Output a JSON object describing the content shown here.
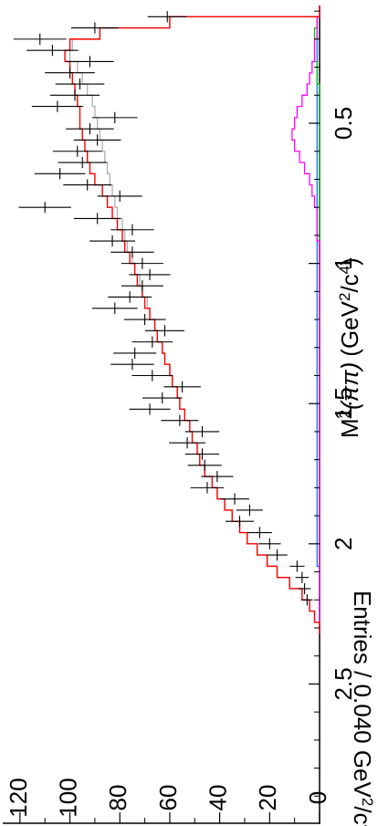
{
  "chart_data": {
    "type": "line",
    "orientation": "rotated-90-clockwise",
    "xlabel_base": "M",
    "xlabel_sup": "2",
    "xlabel_arg": "(ππ)",
    "xlabel_unit_a": "(GeV",
    "xlabel_unit_sup1": "2",
    "xlabel_unit_b": "/c",
    "xlabel_unit_sup2": "4",
    "xlabel_unit_c": ")",
    "ylabel_a": "Entries / 0.040 GeV",
    "ylabel_sup1": "2",
    "ylabel_b": "/c",
    "ylabel_sup2": "4",
    "xlim": [
      0.08,
      3.0
    ],
    "ylim": [
      0,
      128
    ],
    "x_ticks": [
      {
        "v": 0.5,
        "label": "0.5"
      },
      {
        "v": 1.0,
        "label": "1"
      },
      {
        "v": 1.5,
        "label": "1.5"
      },
      {
        "v": 2.0,
        "label": "2"
      },
      {
        "v": 2.5,
        "label": "2.5"
      }
    ],
    "y_ticks": [
      {
        "v": 0,
        "label": "0"
      },
      {
        "v": 20,
        "label": "20"
      },
      {
        "v": 40,
        "label": "40"
      },
      {
        "v": 60,
        "label": "60"
      },
      {
        "v": 80,
        "label": "80"
      },
      {
        "v": 100,
        "label": "100"
      },
      {
        "v": 120,
        "label": "120"
      }
    ],
    "bin_width": 0.04,
    "data_points": [
      {
        "x": 0.12,
        "y": 61
      },
      {
        "x": 0.16,
        "y": 90
      },
      {
        "x": 0.2,
        "y": 112
      },
      {
        "x": 0.24,
        "y": 107
      },
      {
        "x": 0.28,
        "y": 92
      },
      {
        "x": 0.32,
        "y": 100
      },
      {
        "x": 0.36,
        "y": 96
      },
      {
        "x": 0.4,
        "y": 98
      },
      {
        "x": 0.44,
        "y": 105
      },
      {
        "x": 0.48,
        "y": 82
      },
      {
        "x": 0.52,
        "y": 92
      },
      {
        "x": 0.56,
        "y": 89
      },
      {
        "x": 0.6,
        "y": 97
      },
      {
        "x": 0.64,
        "y": 95
      },
      {
        "x": 0.68,
        "y": 104
      },
      {
        "x": 0.72,
        "y": 93
      },
      {
        "x": 0.76,
        "y": 80
      },
      {
        "x": 0.8,
        "y": 110
      },
      {
        "x": 0.84,
        "y": 89
      },
      {
        "x": 0.88,
        "y": 75
      },
      {
        "x": 0.92,
        "y": 83
      },
      {
        "x": 0.96,
        "y": 75
      },
      {
        "x": 1.0,
        "y": 71
      },
      {
        "x": 1.04,
        "y": 68
      },
      {
        "x": 1.08,
        "y": 71
      },
      {
        "x": 1.12,
        "y": 76
      },
      {
        "x": 1.16,
        "y": 82
      },
      {
        "x": 1.2,
        "y": 70
      },
      {
        "x": 1.24,
        "y": 62
      },
      {
        "x": 1.28,
        "y": 67
      },
      {
        "x": 1.32,
        "y": 74
      },
      {
        "x": 1.36,
        "y": 75
      },
      {
        "x": 1.4,
        "y": 67
      },
      {
        "x": 1.44,
        "y": 55
      },
      {
        "x": 1.48,
        "y": 63
      },
      {
        "x": 1.52,
        "y": 68
      },
      {
        "x": 1.56,
        "y": 56
      },
      {
        "x": 1.6,
        "y": 47
      },
      {
        "x": 1.64,
        "y": 53
      },
      {
        "x": 1.68,
        "y": 47
      },
      {
        "x": 1.72,
        "y": 46
      },
      {
        "x": 1.76,
        "y": 41
      },
      {
        "x": 1.8,
        "y": 45
      },
      {
        "x": 1.84,
        "y": 34
      },
      {
        "x": 1.88,
        "y": 28
      },
      {
        "x": 1.92,
        "y": 32
      },
      {
        "x": 1.96,
        "y": 24
      },
      {
        "x": 2.0,
        "y": 20
      },
      {
        "x": 2.04,
        "y": 17
      },
      {
        "x": 2.08,
        "y": 9
      },
      {
        "x": 2.12,
        "y": 7
      },
      {
        "x": 2.16,
        "y": 6
      },
      {
        "x": 2.2,
        "y": 5
      }
    ],
    "fit_total": [
      0,
      60,
      88,
      100,
      102,
      100,
      99,
      98,
      97,
      96,
      96,
      95,
      94,
      93,
      92,
      90,
      87,
      85,
      83,
      81,
      79,
      78,
      76,
      74,
      73,
      71,
      70,
      68,
      66,
      65,
      63,
      62,
      60,
      59,
      57,
      56,
      54,
      52,
      51,
      49,
      48,
      46,
      43,
      41,
      38,
      35,
      32,
      29,
      25,
      21,
      17,
      12,
      7,
      4,
      2,
      0
    ],
    "fit_component_gray": [
      0,
      60,
      88,
      99,
      100,
      97,
      95,
      93,
      91,
      90,
      89,
      88,
      87,
      86,
      85,
      84,
      83,
      82,
      81,
      79,
      78,
      77,
      75,
      74,
      72,
      71,
      69,
      68,
      66,
      65,
      63,
      62,
      60,
      59,
      57,
      56,
      54,
      52,
      51,
      49,
      48,
      46,
      43,
      41,
      38,
      35,
      32,
      29,
      25,
      21,
      17,
      12,
      7,
      4,
      2,
      0
    ],
    "fit_component_magenta": [
      0,
      1,
      1,
      2,
      2,
      3,
      4,
      5,
      7,
      9,
      10,
      11,
      10,
      8,
      6,
      4,
      3,
      2,
      1,
      1,
      1,
      0,
      0,
      0,
      0,
      0,
      0,
      0,
      0,
      0,
      0,
      0,
      0,
      0,
      0,
      0,
      0,
      0,
      0,
      0,
      0,
      0,
      0,
      0,
      0,
      0,
      0,
      0,
      0,
      0,
      0,
      0,
      0,
      0,
      0,
      0
    ],
    "fit_component_green": [
      0,
      1,
      2,
      2,
      2,
      1,
      1,
      0,
      0,
      0,
      0,
      0,
      0,
      0,
      0,
      0,
      0,
      0,
      0,
      0,
      0,
      0,
      0,
      0,
      0,
      0,
      0,
      0,
      0,
      0,
      0,
      0,
      0,
      0,
      0,
      0,
      0,
      0,
      0,
      0,
      0,
      0,
      0,
      0,
      0,
      0,
      0,
      0,
      0,
      0,
      0,
      0,
      0,
      0,
      0,
      0
    ],
    "fit_component_blue": [
      0,
      1,
      1,
      1,
      1,
      1,
      1,
      1,
      1,
      1,
      1,
      1,
      1,
      1,
      1,
      1,
      1,
      1,
      1,
      1,
      1,
      1,
      1,
      1,
      1,
      1,
      1,
      1,
      1,
      1,
      1,
      1,
      1,
      1,
      1,
      1,
      1,
      1,
      1,
      1,
      1,
      1,
      1,
      1,
      1,
      1,
      1,
      1,
      1,
      1,
      0,
      0,
      0,
      0,
      0,
      0
    ],
    "colors": {
      "total": "#ff0000",
      "gray": "#b0b0b0",
      "magenta": "#ff00ff",
      "green": "#00c000",
      "blue": "#0060ff",
      "data": "#000000"
    }
  }
}
